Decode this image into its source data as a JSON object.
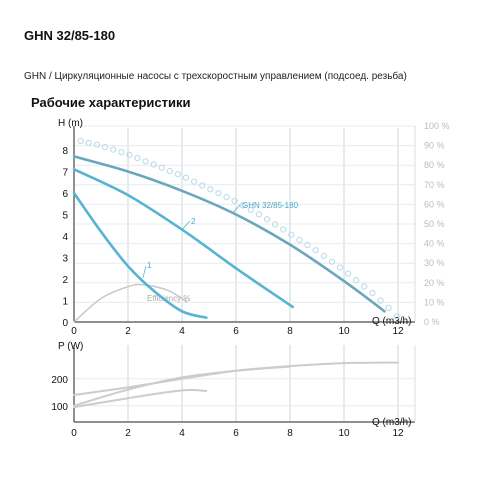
{
  "header": {
    "title": "GHN 32/85-180",
    "subtitle": "GHN / Циркуляционные насосы с трехскоростным управлением (подсоед. резьба)"
  },
  "section_title": "Рабочие характеристики",
  "colors": {
    "curve": "#56b3d1",
    "max_curve": "#6aa6be",
    "efficiency": "#c8c8c8",
    "power": "#cccccc",
    "grid": "#c9d6dd",
    "dots": "#b7d9e8"
  },
  "chart_data": [
    {
      "type": "line",
      "xlabel": "Q (m3/h)",
      "ylabel": "H (m)",
      "xlim": [
        0,
        12.6
      ],
      "ylim": [
        0,
        8.5
      ],
      "x_ticks": [
        "0",
        "2",
        "4",
        "6",
        "8",
        "10",
        "12"
      ],
      "y_ticks": [
        "0",
        "1",
        "2",
        "3",
        "4",
        "5",
        "6",
        "7",
        "8"
      ],
      "right_axis": {
        "label_unit": "%",
        "ticks": [
          "0 %",
          "10 %",
          "20 %",
          "30 %",
          "40 %",
          "50 %",
          "60 %",
          "70 %",
          "80 %",
          "90 %",
          "100 %"
        ]
      },
      "series": [
        {
          "name": "GHN 32/85-180",
          "x": [
            0,
            2,
            4,
            6,
            8,
            10,
            11.5
          ],
          "y": [
            7.7,
            7.0,
            6.1,
            5.0,
            3.6,
            1.9,
            0.5
          ]
        },
        {
          "name": "2",
          "x": [
            0,
            2,
            4,
            6,
            8.1
          ],
          "y": [
            7.1,
            5.9,
            4.3,
            2.5,
            0.7
          ]
        },
        {
          "name": "1",
          "x": [
            0,
            1,
            2,
            3,
            4,
            4.9
          ],
          "y": [
            6.0,
            4.2,
            2.6,
            1.4,
            0.5,
            0.2
          ]
        },
        {
          "name": "Efficiency %",
          "x": [
            0,
            1,
            2,
            2.6,
            3.5,
            4.2
          ],
          "y": [
            0,
            12,
            18,
            19,
            16,
            10
          ]
        },
        {
          "x": [
            0,
            1,
            2,
            3,
            4,
            5,
            6,
            7,
            8,
            9,
            10,
            11,
            11.7,
            12
          ],
          "y": [
            8.5,
            8.2,
            7.8,
            7.3,
            6.8,
            6.2,
            5.6,
            4.9,
            4.1,
            3.3,
            2.4,
            1.4,
            0.6,
            0.2
          ]
        }
      ]
    },
    {
      "type": "line",
      "xlabel": "Q (m3/h)",
      "ylabel": "P (W)",
      "xlim": [
        0,
        12.6
      ],
      "ylim": [
        40,
        300
      ],
      "x_ticks": [
        "0",
        "2",
        "4",
        "6",
        "8",
        "10",
        "12"
      ],
      "y_ticks": [
        "100",
        "200"
      ],
      "series": [
        {
          "x": [
            0,
            2,
            4,
            6,
            8,
            10,
            12
          ],
          "y": [
            140,
            168,
            200,
            230,
            247,
            258,
            260
          ]
        },
        {
          "x": [
            0,
            2,
            4,
            6,
            8
          ],
          "y": [
            100,
            160,
            205,
            230,
            245
          ]
        },
        {
          "x": [
            0,
            2,
            4,
            4.9
          ],
          "y": [
            95,
            128,
            157,
            155
          ]
        }
      ]
    }
  ]
}
